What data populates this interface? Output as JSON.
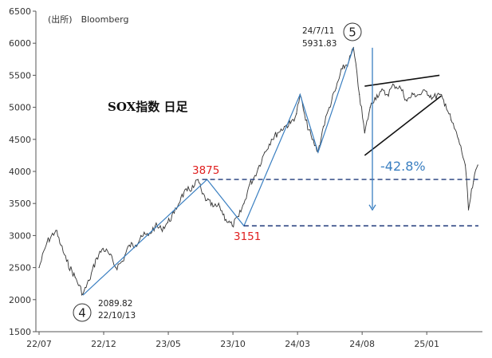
{
  "chart_data": {
    "type": "line",
    "title": "SOX指数 日足",
    "source": "(出所)　Bloomberg",
    "xlabel": "",
    "ylabel": "",
    "ylim": [
      1500,
      6500
    ],
    "yticks": [
      1500,
      2000,
      2500,
      3000,
      3500,
      4000,
      4500,
      5000,
      5500,
      6000,
      6500
    ],
    "ytick_labels": [
      "1500",
      "2000",
      "2500",
      "3000",
      "3500",
      "4000",
      "4500",
      "5000",
      "5500",
      "6000",
      "6500"
    ],
    "xlim": [
      "2022-07",
      "2025-05"
    ],
    "xticks": [
      "2022-07",
      "2022-12",
      "2023-05",
      "2023-10",
      "2024-03",
      "2024-08",
      "2025-01"
    ],
    "xtick_labels": [
      "22/07",
      "22/12",
      "23/05",
      "23/10",
      "24/03",
      "24/08",
      "25/01"
    ],
    "grid": false,
    "series": [
      {
        "color": "#333333",
        "x": [
          "2022-07-01",
          "2022-07-20",
          "2022-08-10",
          "2022-08-22",
          "2022-09-05",
          "2022-09-25",
          "2022-10-13",
          "2022-10-28",
          "2022-11-15",
          "2022-11-30",
          "2022-12-15",
          "2022-12-30",
          "2023-01-15",
          "2023-01-31",
          "2023-02-15",
          "2023-02-28",
          "2023-03-15",
          "2023-03-31",
          "2023-04-15",
          "2023-04-30",
          "2023-05-15",
          "2023-05-31",
          "2023-06-15",
          "2023-06-30",
          "2023-07-10",
          "2023-07-20",
          "2023-07-31",
          "2023-08-15",
          "2023-08-31",
          "2023-09-15",
          "2023-09-30",
          "2023-10-15",
          "2023-10-27",
          "2023-11-10",
          "2023-11-20",
          "2023-11-30",
          "2023-12-15",
          "2023-12-31",
          "2024-01-15",
          "2024-01-31",
          "2024-02-15",
          "2024-02-29",
          "2024-03-07",
          "2024-03-20",
          "2024-04-05",
          "2024-04-19",
          "2024-05-01",
          "2024-05-15",
          "2024-05-31",
          "2024-06-15",
          "2024-06-30",
          "2024-07-11",
          "2024-07-25",
          "2024-08-07",
          "2024-08-20",
          "2024-08-31",
          "2024-09-15",
          "2024-09-30",
          "2024-10-15",
          "2024-10-31",
          "2024-11-15",
          "2024-11-30",
          "2024-12-15",
          "2024-12-31",
          "2025-01-15",
          "2025-01-31",
          "2025-02-15",
          "2025-02-28",
          "2025-03-15",
          "2025-03-31",
          "2025-04-08",
          "2025-04-20",
          "2025-04-30"
        ],
        "values": [
          2500,
          2900,
          3080,
          2850,
          2600,
          2350,
          2089.82,
          2300,
          2650,
          2800,
          2700,
          2500,
          2600,
          2850,
          2850,
          3000,
          3000,
          3150,
          3100,
          3200,
          3350,
          3600,
          3700,
          3750,
          3875,
          3650,
          3550,
          3450,
          3450,
          3250,
          3151,
          3300,
          3500,
          3800,
          3900,
          4050,
          4300,
          4500,
          4600,
          4700,
          4750,
          4900,
          5200,
          4800,
          4500,
          4300,
          4700,
          5000,
          5300,
          5600,
          5700,
          5931.83,
          5200,
          4600,
          5000,
          5150,
          5250,
          5200,
          5350,
          5300,
          5100,
          5200,
          5200,
          5250,
          5150,
          5200,
          5050,
          4800,
          4500,
          4100,
          3400,
          3850,
          4100
        ]
      }
    ],
    "annotations": {
      "high_date": "24/7/11",
      "high_value": "5931.83",
      "low_value": "2089.82",
      "low_date": "22/10/13",
      "level_high": "3875",
      "level_low": "3151",
      "decline_pct": "-42.8%",
      "wave4_label": "4",
      "wave5_label": "5"
    }
  }
}
